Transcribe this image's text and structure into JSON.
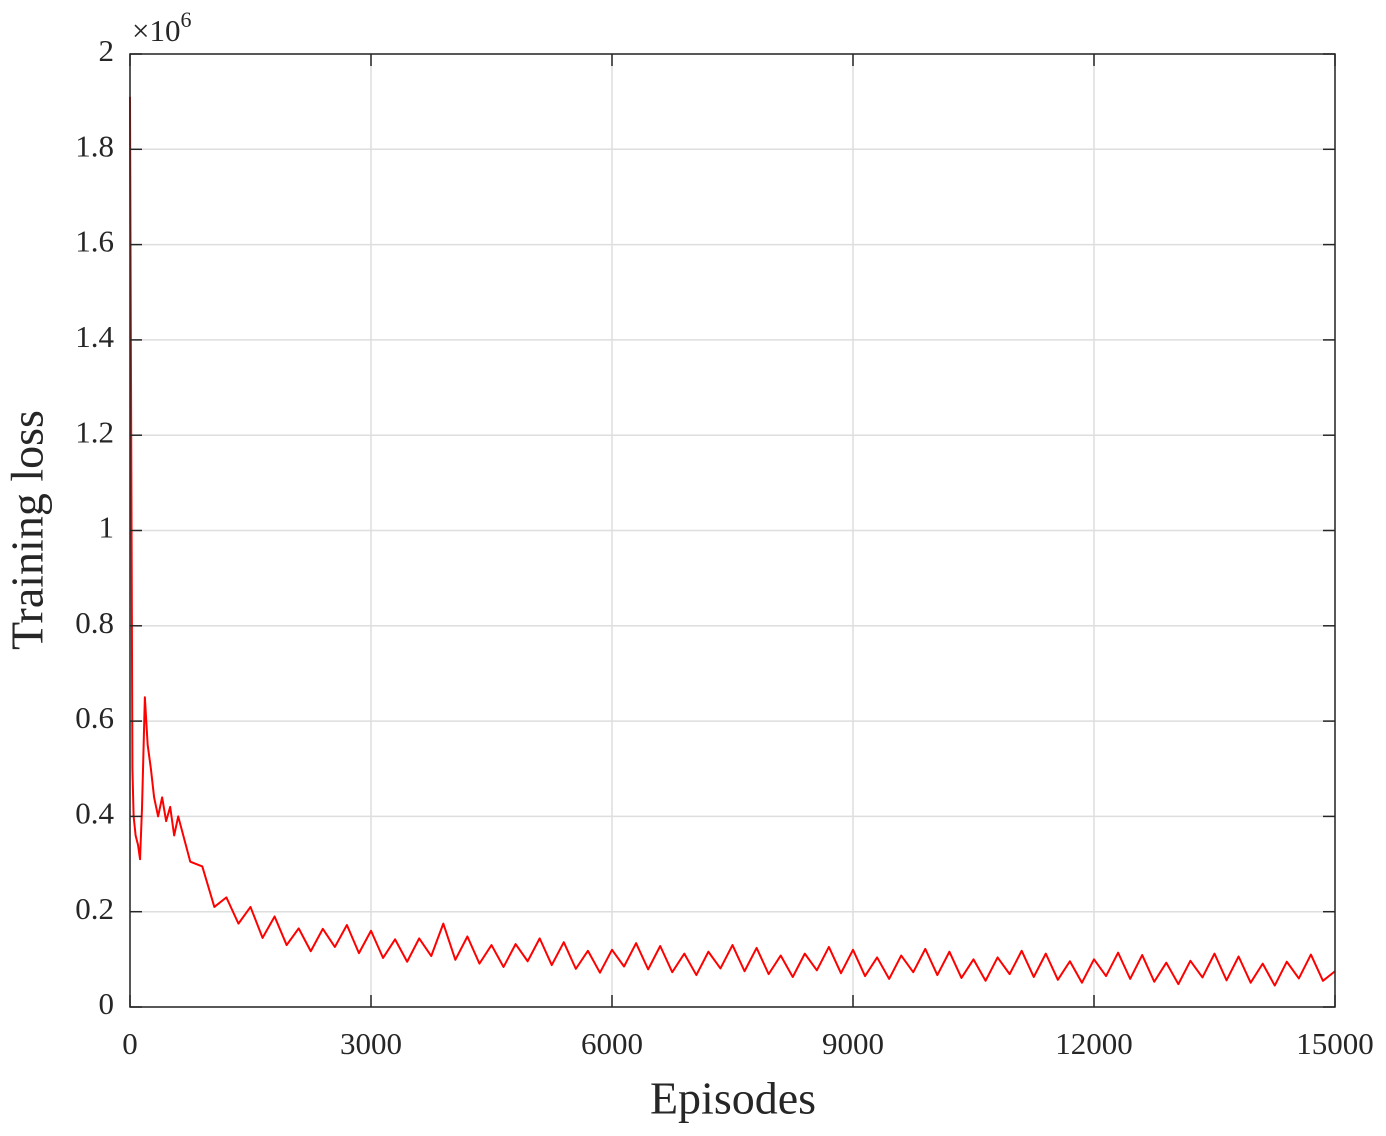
{
  "chart_data": {
    "type": "line",
    "xlabel": "Episodes",
    "ylabel": "Training loss",
    "y_multiplier": {
      "base": "×10",
      "exponent": "6"
    },
    "x": [
      0,
      15,
      30,
      45,
      70,
      100,
      125,
      150,
      185,
      220,
      260,
      300,
      350,
      400,
      450,
      500,
      550,
      600,
      750,
      900,
      1050,
      1200,
      1350,
      1500,
      1650,
      1800,
      1950,
      2100,
      2250,
      2400,
      2550,
      2700,
      2850,
      3000,
      3150,
      3300,
      3450,
      3600,
      3750,
      3900,
      4050,
      4200,
      4350,
      4500,
      4650,
      4800,
      4950,
      5100,
      5250,
      5400,
      5550,
      5700,
      5850,
      6000,
      6150,
      6300,
      6450,
      6600,
      6750,
      6900,
      7050,
      7200,
      7350,
      7500,
      7650,
      7800,
      7950,
      8100,
      8250,
      8400,
      8550,
      8700,
      8850,
      9000,
      9150,
      9300,
      9450,
      9600,
      9750,
      9900,
      10050,
      10200,
      10350,
      10500,
      10650,
      10800,
      10950,
      11100,
      11250,
      11400,
      11550,
      11700,
      11850,
      12000,
      12150,
      12300,
      12450,
      12600,
      12750,
      12900,
      13050,
      13200,
      13350,
      13500,
      13650,
      13800,
      13950,
      14100,
      14250,
      14400,
      14550,
      14700,
      14850,
      15000
    ],
    "series": [
      {
        "name": "Training loss",
        "color": "#ff0000",
        "values": [
          1.91,
          1.2,
          0.5,
          0.4,
          0.36,
          0.34,
          0.31,
          0.42,
          0.65,
          0.55,
          0.5,
          0.44,
          0.4,
          0.44,
          0.39,
          0.42,
          0.36,
          0.4,
          0.305,
          0.295,
          0.21,
          0.23,
          0.175,
          0.21,
          0.145,
          0.19,
          0.13,
          0.165,
          0.117,
          0.164,
          0.126,
          0.172,
          0.113,
          0.16,
          0.103,
          0.142,
          0.095,
          0.144,
          0.107,
          0.175,
          0.099,
          0.148,
          0.091,
          0.13,
          0.084,
          0.132,
          0.096,
          0.144,
          0.088,
          0.136,
          0.08,
          0.118,
          0.072,
          0.12,
          0.085,
          0.134,
          0.079,
          0.128,
          0.073,
          0.112,
          0.067,
          0.116,
          0.081,
          0.13,
          0.075,
          0.124,
          0.069,
          0.108,
          0.063,
          0.112,
          0.077,
          0.126,
          0.071,
          0.12,
          0.065,
          0.104,
          0.059,
          0.108,
          0.073,
          0.122,
          0.067,
          0.116,
          0.061,
          0.1,
          0.055,
          0.104,
          0.069,
          0.118,
          0.063,
          0.112,
          0.057,
          0.096,
          0.051,
          0.1,
          0.065,
          0.114,
          0.059,
          0.109,
          0.053,
          0.093,
          0.048,
          0.097,
          0.062,
          0.112,
          0.056,
          0.106,
          0.051,
          0.091,
          0.045,
          0.095,
          0.06,
          0.11,
          0.055,
          0.075
        ]
      }
    ],
    "xlim": [
      0,
      15000
    ],
    "xticks": [
      0,
      3000,
      6000,
      9000,
      12000,
      15000
    ],
    "ylim": [
      0,
      2
    ],
    "yticks": [
      0,
      0.2,
      0.4,
      0.6,
      0.8,
      1,
      1.2,
      1.4,
      1.6,
      1.8,
      2
    ],
    "grid": true
  }
}
